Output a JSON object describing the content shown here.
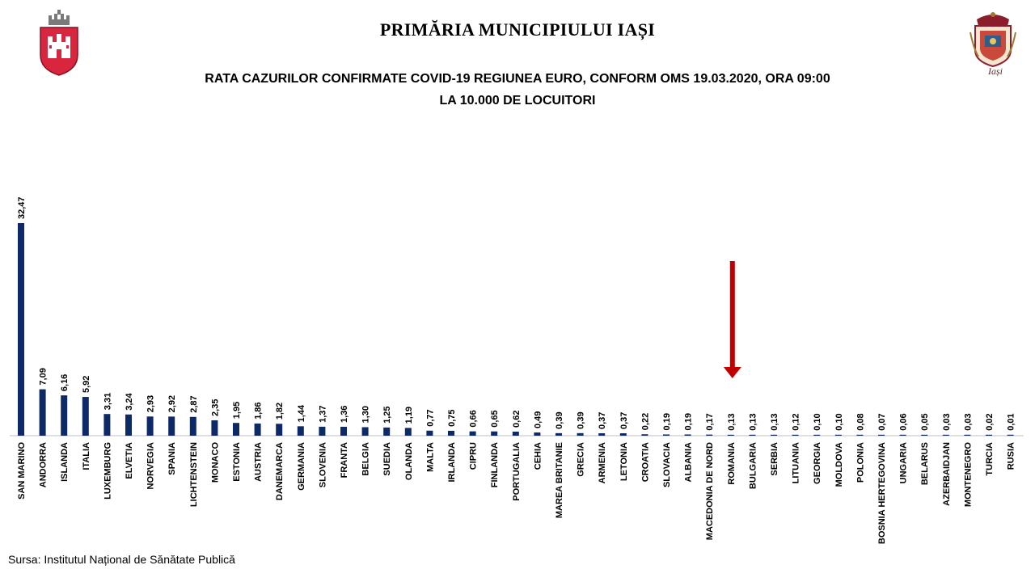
{
  "header": {
    "title": "PRIMĂRIA MUNICIPIULUI IAȘI",
    "right_logo_text": "Iași"
  },
  "chart_data": {
    "type": "bar",
    "title": "RATA CAZURILOR CONFIRMATE COVID-19 REGIUNEA EURO, CONFORM OMS 19.03.2020, ORA 09:00",
    "subtitle": "LA 10.000 DE LOCUITORI",
    "categories": [
      "SAN MARINO",
      "ANDORRA",
      "ISLANDA",
      "ITALIA",
      "LUXEMBURG",
      "ELVETIA",
      "NORVEGIA",
      "SPANIA",
      "LICHTENSTEIN",
      "MONACO",
      "ESTONIA",
      "AUSTRIA",
      "DANEMARCA",
      "GERMANIA",
      "SLOVENIA",
      "FRANTA",
      "BELGIA",
      "SUEDIA",
      "OLANDA",
      "MALTA",
      "IRLANDA",
      "CIPRU",
      "FINLANDA",
      "PORTUGALIA",
      "CEHIA",
      "MAREA BRITANIE",
      "GRECIA",
      "ARMENIA",
      "LETONIA",
      "CROATIA",
      "SLOVACIA",
      "ALBANIA",
      "MACEDONIA DE NORD",
      "ROMANIA",
      "BULGARIA",
      "SERBIA",
      "LITUANIA",
      "GEORGIA",
      "MOLDOVA",
      "POLONIA",
      "BOSNIA HERTEGOVINA",
      "UNGARIA",
      "BELARUS",
      "AZERBAIDJAN",
      "MONTENEGRO",
      "TURCIA",
      "RUSIA"
    ],
    "values": [
      32.47,
      7.09,
      6.16,
      5.92,
      3.31,
      3.24,
      2.93,
      2.92,
      2.87,
      2.35,
      1.95,
      1.86,
      1.82,
      1.44,
      1.37,
      1.36,
      1.3,
      1.25,
      1.19,
      0.77,
      0.75,
      0.66,
      0.65,
      0.62,
      0.49,
      0.39,
      0.39,
      0.37,
      0.37,
      0.22,
      0.19,
      0.19,
      0.17,
      0.13,
      0.13,
      0.13,
      0.12,
      0.1,
      0.1,
      0.08,
      0.07,
      0.06,
      0.05,
      0.03,
      0.03,
      0.02,
      0.01
    ],
    "value_labels": [
      "32,47",
      "7,09",
      "6,16",
      "5,92",
      "3,31",
      "3,24",
      "2,93",
      "2,92",
      "2,87",
      "2,35",
      "1,95",
      "1,86",
      "1,82",
      "1,44",
      "1,37",
      "1,36",
      "1,30",
      "1,25",
      "1,19",
      "0,77",
      "0,75",
      "0,66",
      "0,65",
      "0,62",
      "0,49",
      "0,39",
      "0,39",
      "0,37",
      "0,37",
      "0,22",
      "0,19",
      "0,19",
      "0,17",
      "0,13",
      "0,13",
      "0,13",
      "0,12",
      "0,10",
      "0,10",
      "0,08",
      "0,07",
      "0,06",
      "0,05",
      "0,03",
      "0,03",
      "0,02",
      "0,01"
    ],
    "highlight_category": "ROMANIA",
    "bar_color": "#0d2a66",
    "arrow_color": "#c00000",
    "grid": false,
    "legend": "none"
  },
  "footer": {
    "source": "Sursa: Institutul Național de Sănătate Publică"
  }
}
